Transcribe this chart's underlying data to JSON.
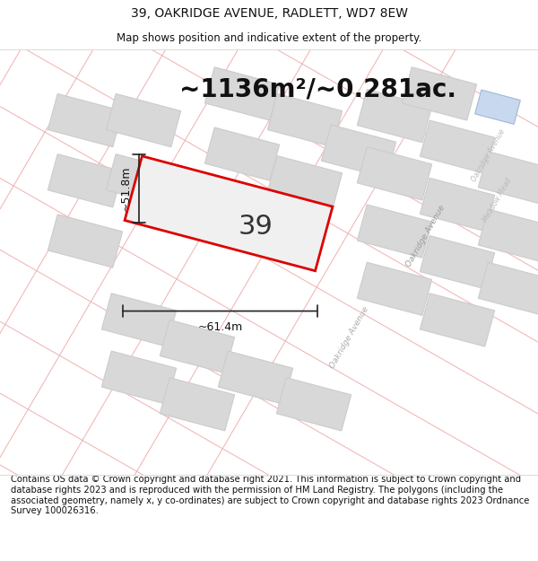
{
  "title": "39, OAKRIDGE AVENUE, RADLETT, WD7 8EW",
  "subtitle": "Map shows position and indicative extent of the property.",
  "area_text": "~1136m²/~0.281ac.",
  "property_number": "39",
  "width_label": "~61.4m",
  "height_label": "~51.8m",
  "footer": "Contains OS data © Crown copyright and database right 2021. This information is subject to Crown copyright and database rights 2023 and is reproduced with the permission of HM Land Registry. The polygons (including the associated geometry, namely x, y co-ordinates) are subject to Crown copyright and database rights 2023 Ordnance Survey 100026316.",
  "bg_color": "#ffffff",
  "map_bg": "#ffffff",
  "plot_fill": "#f0f0f0",
  "plot_edge_color": "#dd0000",
  "road_line_color": "#f0b0b0",
  "neighbor_fill": "#d8d8d8",
  "neighbor_edge": "#cccccc",
  "blue_fill": "#c8d8ef",
  "blue_edge": "#a0b8d8",
  "title_fontsize": 10,
  "subtitle_fontsize": 8.5,
  "area_fontsize": 20,
  "number_fontsize": 22,
  "label_fontsize": 9,
  "footer_fontsize": 7.2
}
